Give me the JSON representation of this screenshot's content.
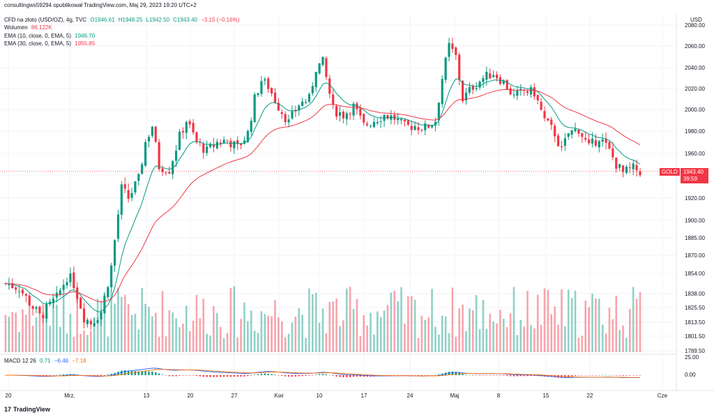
{
  "header": {
    "author_line": "consultingws59294 opublikował TradingView.com, Maj 29, 2023 19:20 UTC+2"
  },
  "legend": {
    "symbol": "CFD na złoto (USD/OZ), 4g, TVC",
    "open": "O1946.61",
    "high": "H1948.25",
    "low": "L1942.50",
    "close": "C1943.40",
    "change": "−3.15 (−0.16%)",
    "volume_label": "Wolumen",
    "volume_value": "86.122K",
    "ema10_label": "EMA (10, close, 0, EMA, 5)",
    "ema10_value": "1946.70",
    "ema30_label": "EMA (30, close, 0, EMA, 5)",
    "ema30_value": "1955.85",
    "macd_label": "MACD 12 26",
    "macd_hist": "0.71",
    "macd_line": "−6.46",
    "macd_signal": "−7.18"
  },
  "price_tag": {
    "symbol": "GOLD",
    "price": "1943.40",
    "countdown": "39:59"
  },
  "footer": {
    "logo": "17",
    "brand": "TradingView"
  },
  "colors": {
    "up": "#089981",
    "down": "#f23645",
    "ema10": "#089981",
    "ema30": "#f23645",
    "macd": "#2962ff",
    "signal": "#ff6d00",
    "grid": "#f0f3fa"
  },
  "chart_data": {
    "type": "candlestick",
    "currency": "USD",
    "y_axis_ticks": [
      "2080.00",
      "2060.00",
      "2040.00",
      "2020.00",
      "2000.00",
      "1980.00",
      "1960.00",
      "1940.00",
      "1920.00",
      "1900.00",
      "1885.00",
      "1870.00",
      "1854.00",
      "1838.00",
      "1825.50",
      "1813.50",
      "1801.50",
      "1789.50"
    ],
    "x_axis_ticks": [
      "20",
      "Mrz.",
      "13",
      "20",
      "27",
      "Kwi",
      "10",
      "17",
      "24",
      "Maj",
      "8",
      "15",
      "22",
      "Cze"
    ],
    "macd_axis_ticks": [
      "25.00",
      "0.00"
    ],
    "close_path": [
      [
        0,
        1846
      ],
      [
        4,
        1843
      ],
      [
        7,
        1830
      ],
      [
        10,
        1818
      ],
      [
        12,
        1824
      ],
      [
        15,
        1834
      ],
      [
        18,
        1852
      ],
      [
        20,
        1846
      ],
      [
        23,
        1818
      ],
      [
        25,
        1813
      ],
      [
        28,
        1822
      ],
      [
        31,
        1860
      ],
      [
        34,
        1928
      ],
      [
        36,
        1920
      ],
      [
        39,
        1936
      ],
      [
        41,
        1970
      ],
      [
        43,
        1985
      ],
      [
        45,
        1948
      ],
      [
        48,
        1945
      ],
      [
        51,
        1975
      ],
      [
        53,
        1990
      ],
      [
        56,
        1970
      ],
      [
        59,
        1962
      ],
      [
        62,
        1970
      ],
      [
        65,
        1972
      ],
      [
        68,
        1965
      ],
      [
        71,
        1978
      ],
      [
        73,
        2010
      ],
      [
        75,
        2028
      ],
      [
        77,
        2022
      ],
      [
        80,
        2003
      ],
      [
        83,
        1988
      ],
      [
        86,
        2005
      ],
      [
        89,
        2010
      ],
      [
        91,
        2040
      ],
      [
        93,
        2045
      ],
      [
        96,
        2000
      ],
      [
        99,
        1995
      ],
      [
        102,
        2003
      ],
      [
        105,
        1985
      ],
      [
        108,
        1990
      ],
      [
        111,
        1995
      ],
      [
        114,
        1992
      ],
      [
        117,
        1984
      ],
      [
        120,
        1985
      ],
      [
        123,
        1983
      ],
      [
        126,
        1990
      ],
      [
        128,
        2030
      ],
      [
        130,
        2060
      ],
      [
        132,
        2050
      ],
      [
        134,
        2010
      ],
      [
        137,
        2022
      ],
      [
        140,
        2030
      ],
      [
        143,
        2035
      ],
      [
        146,
        2026
      ],
      [
        149,
        2012
      ],
      [
        152,
        2018
      ],
      [
        155,
        2016
      ],
      [
        158,
        1990
      ],
      [
        161,
        1978
      ],
      [
        163,
        1962
      ],
      [
        165,
        1978
      ],
      [
        168,
        1982
      ],
      [
        171,
        1965
      ],
      [
        174,
        1975
      ],
      [
        177,
        1962
      ],
      [
        179,
        1950
      ],
      [
        181,
        1942
      ],
      [
        184,
        1946
      ],
      [
        186,
        1943.4
      ]
    ],
    "last_close": 1943.4
  }
}
